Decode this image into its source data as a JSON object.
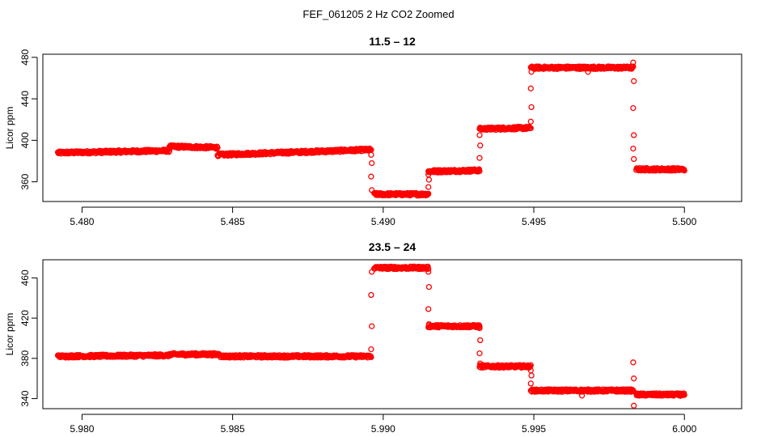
{
  "figure_title": "FEF_061205  2 Hz CO2 Zoomed",
  "chart_data": [
    {
      "type": "scatter",
      "title": "11.5 – 12",
      "xlabel": "",
      "ylabel": "Licor ppm",
      "xlim": [
        5.4787,
        5.5019
      ],
      "ylim": [
        341,
        483
      ],
      "xticks": [
        5.48,
        5.485,
        5.49,
        5.495,
        5.5
      ],
      "xtick_labels": [
        "5.480",
        "5.485",
        "5.490",
        "5.495",
        "5.500"
      ],
      "yticks": [
        360,
        400,
        440,
        480
      ],
      "ytick_labels": [
        "360",
        "400",
        "440",
        "480"
      ],
      "color": "#ff0000",
      "marker": "open-circle",
      "segments": [
        {
          "x": [
            5.4792,
            5.4829
          ],
          "y": [
            388,
            390
          ]
        },
        {
          "x": [
            5.4829,
            5.4845
          ],
          "y": [
            394,
            393
          ]
        },
        {
          "x": [
            5.4845,
            5.4896
          ],
          "y": [
            386,
            391
          ]
        },
        {
          "x": [
            5.4897,
            5.4915
          ],
          "y": [
            348,
            348
          ]
        },
        {
          "x": [
            5.4915,
            5.4932
          ],
          "y": [
            370,
            371
          ]
        },
        {
          "x": [
            5.4932,
            5.4949
          ],
          "y": [
            411,
            412
          ]
        },
        {
          "x": [
            5.4949,
            5.4983
          ],
          "y": [
            470,
            470
          ]
        },
        {
          "x": [
            5.4984,
            5.5
          ],
          "y": [
            372,
            372
          ]
        }
      ],
      "transitions": [
        {
          "x": 5.4896,
          "y": [
            386,
            378,
            365,
            352
          ]
        },
        {
          "x": 5.4915,
          "y": [
            355,
            362,
            367
          ]
        },
        {
          "x": 5.4932,
          "y": [
            383,
            395,
            405
          ]
        },
        {
          "x": 5.4949,
          "y": [
            418,
            432,
            450,
            466
          ]
        },
        {
          "x": 5.4983,
          "y": [
            475,
            457,
            431,
            405,
            392,
            382
          ]
        }
      ],
      "outliers": [
        {
          "x": 5.4968,
          "y": 466
        }
      ]
    },
    {
      "type": "scatter",
      "title": "23.5 – 24",
      "xlabel": "",
      "ylabel": "Licor ppm",
      "xlim": [
        5.9787,
        6.0019
      ],
      "ylim": [
        330,
        478
      ],
      "xticks": [
        5.98,
        5.985,
        5.99,
        5.995,
        6.0
      ],
      "xtick_labels": [
        "5.980",
        "5.985",
        "5.990",
        "5.995",
        "6.000"
      ],
      "yticks": [
        340,
        380,
        420,
        460
      ],
      "ytick_labels": [
        "340",
        "380",
        "420",
        "460"
      ],
      "color": "#ff0000",
      "marker": "open-circle",
      "segments": [
        {
          "x": [
            5.9792,
            5.9829
          ],
          "y": [
            382,
            383
          ]
        },
        {
          "x": [
            5.9829,
            5.9846
          ],
          "y": [
            384,
            384
          ]
        },
        {
          "x": [
            5.9846,
            5.9896
          ],
          "y": [
            382,
            382
          ]
        },
        {
          "x": [
            5.9897,
            5.9915
          ],
          "y": [
            470,
            470
          ]
        },
        {
          "x": [
            5.9915,
            5.9932
          ],
          "y": [
            412,
            412
          ]
        },
        {
          "x": [
            5.9932,
            5.9949
          ],
          "y": [
            372,
            372
          ]
        },
        {
          "x": [
            5.9949,
            5.9983
          ],
          "y": [
            348,
            348
          ]
        },
        {
          "x": [
            5.9984,
            6.0
          ],
          "y": [
            344,
            344
          ]
        }
      ],
      "transitions": [
        {
          "x": 5.9896,
          "y": [
            389,
            412,
            443,
            466
          ]
        },
        {
          "x": 5.9915,
          "y": [
            466,
            451,
            429,
            414
          ]
        },
        {
          "x": 5.9932,
          "y": [
            410,
            398,
            385,
            375
          ]
        },
        {
          "x": 5.9949,
          "y": [
            368,
            363,
            355
          ]
        },
        {
          "x": 5.9983,
          "y": [
            376,
            360,
            348,
            333
          ]
        }
      ],
      "outliers": [
        {
          "x": 5.9966,
          "y": 343
        }
      ]
    }
  ]
}
